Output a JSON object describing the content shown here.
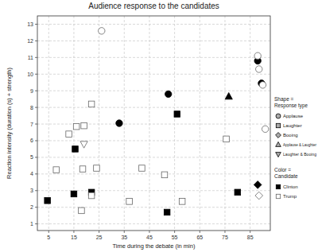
{
  "chart_data": {
    "type": "scatter",
    "title": "Audience response to the candidates",
    "x_label": "Time during the debate (in min)",
    "y_label": "Reaction intensity (duration (s) + strength)",
    "xlim": [
      0.5,
      93
    ],
    "xticks": [
      5,
      15,
      25,
      35,
      45,
      55,
      65,
      75,
      85
    ],
    "ylim": [
      0.6,
      13.5
    ],
    "yticks": [
      1,
      2,
      3,
      4,
      5,
      6,
      7,
      8,
      9,
      10,
      11,
      12,
      13
    ],
    "grid": true,
    "legend": "right",
    "series": [
      {
        "name": "Clinton",
        "color": "#000000",
        "marker": "square",
        "x": [
          4.5,
          15,
          15.5,
          22,
          52,
          56,
          80
        ],
        "values": [
          2.4,
          2.8,
          5.5,
          2.9,
          1.7,
          7.6,
          2.9
        ]
      },
      {
        "name": "Clinton",
        "color": "#000000",
        "marker": "circle",
        "x": [
          33,
          52.5,
          88,
          89.5
        ],
        "values": [
          7.05,
          8.8,
          10.8,
          9.45
        ]
      },
      {
        "name": "Clinton",
        "color": "#000000",
        "marker": "triangle-up",
        "x": [
          76.5
        ],
        "values": [
          8.65
        ]
      },
      {
        "name": "Clinton",
        "color": "#000000",
        "marker": "diamond",
        "x": [
          88
        ],
        "values": [
          3.35
        ]
      },
      {
        "name": "Trump",
        "color": "#ffffff",
        "marker": "square",
        "x": [
          8,
          13,
          16,
          18,
          18.5,
          19,
          22,
          22,
          24,
          37,
          42,
          51,
          58,
          75.5
        ],
        "values": [
          4.25,
          6.4,
          6.85,
          1.8,
          4.3,
          6.9,
          8.2,
          2.7,
          4.35,
          2.35,
          4.35,
          3.95,
          2.35,
          6.1
        ]
      },
      {
        "name": "Trump",
        "color": "#ffffff",
        "marker": "circle",
        "x": [
          26,
          88,
          88.5,
          90,
          91
        ],
        "values": [
          12.6,
          11.1,
          10.3,
          9.35,
          6.7
        ]
      },
      {
        "name": "Trump",
        "color": "#ffffff",
        "marker": "triangle-down",
        "x": [
          19
        ],
        "values": [
          5.8
        ]
      },
      {
        "name": "Trump",
        "color": "#ffffff",
        "marker": "diamond",
        "x": [
          88.5
        ],
        "values": [
          2.7
        ]
      }
    ],
    "legend_shape": {
      "title": [
        "Shape =",
        "Response type"
      ],
      "color": "#aaaaaa",
      "items": [
        {
          "label": "Applause",
          "marker": "circle"
        },
        {
          "label": "Laughter",
          "marker": "square"
        },
        {
          "label": "Booing",
          "marker": "diamond"
        },
        {
          "label": "Applause & Laughter",
          "marker": "triangle-up"
        },
        {
          "label": "Laughter & Booing",
          "marker": "triangle-down"
        }
      ]
    },
    "legend_color": {
      "title": [
        "Color =",
        "Candidate"
      ],
      "items": [
        {
          "label": "Clinton",
          "color": "#000000",
          "marker": "square"
        },
        {
          "label": "Trump",
          "color": "#ffffff",
          "marker": "square"
        }
      ]
    }
  }
}
